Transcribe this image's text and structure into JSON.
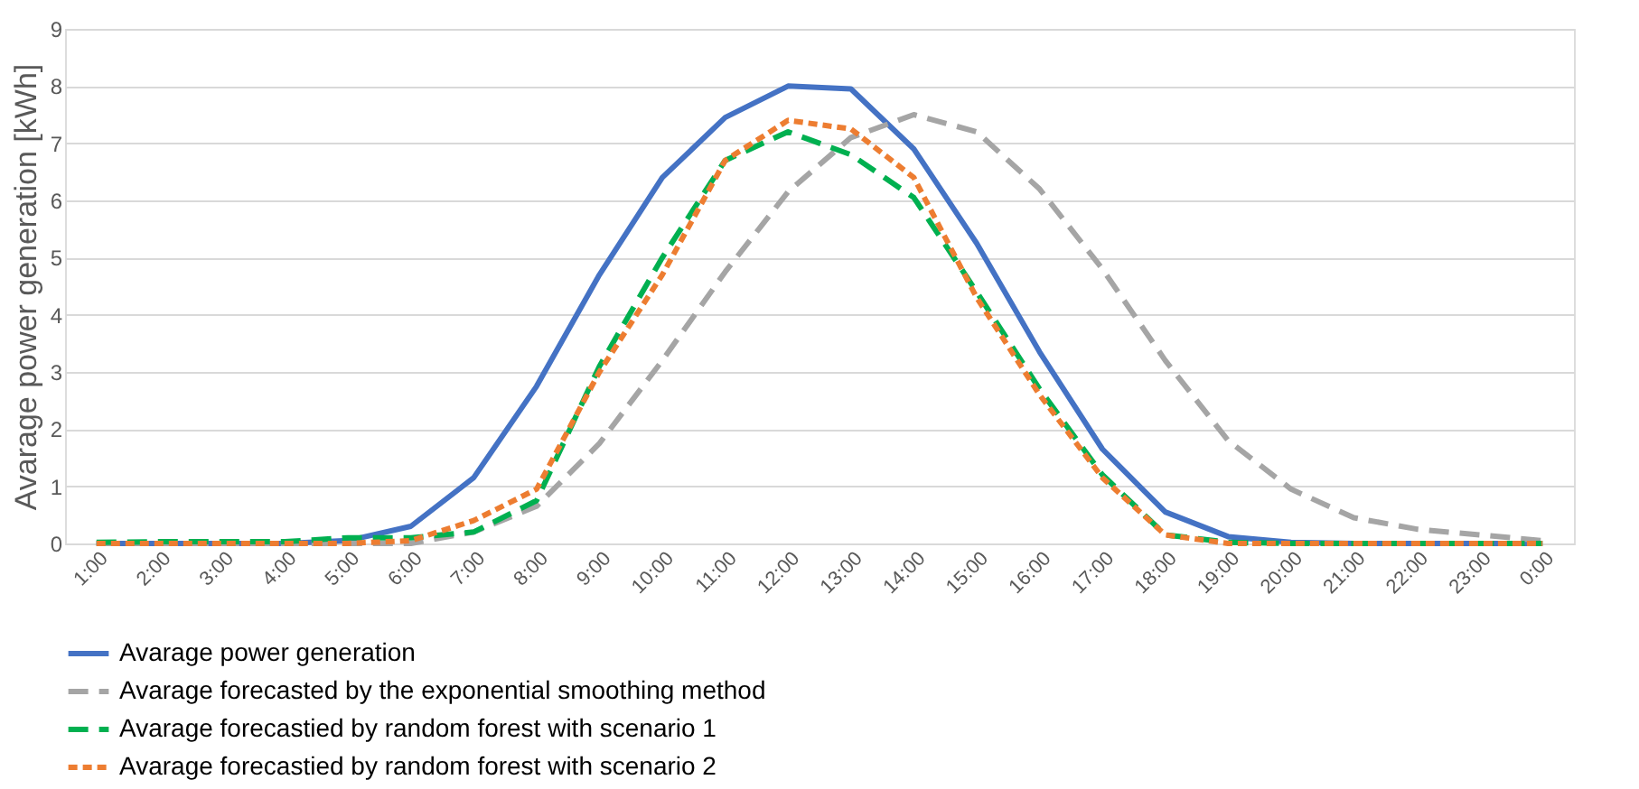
{
  "chart_data": {
    "type": "line",
    "ylabel": "Avarage power generation [kWh]",
    "categories": [
      "1:00",
      "2:00",
      "3:00",
      "4:00",
      "5:00",
      "6:00",
      "7:00",
      "8:00",
      "9:00",
      "10:00",
      "11:00",
      "12:00",
      "13:00",
      "14:00",
      "15:00",
      "16:00",
      "17:00",
      "18:00",
      "19:00",
      "20:00",
      "21:00",
      "22:00",
      "23:00",
      "0:00"
    ],
    "series": [
      {
        "name": "Avarage power generation",
        "color": "#4472c4",
        "line_style": "solid",
        "values": [
          0,
          0,
          0,
          0,
          0.05,
          0.3,
          1.15,
          2.75,
          4.7,
          6.4,
          7.45,
          8.0,
          7.95,
          6.9,
          5.25,
          3.35,
          1.65,
          0.55,
          0.12,
          0.02,
          0,
          0,
          0,
          0
        ]
      },
      {
        "name": "Avarage forecasted by the exponential smoothing method",
        "color": "#a5a5a5",
        "line_style": "dashed",
        "values": [
          0,
          0,
          0,
          0,
          0,
          0,
          0.2,
          0.65,
          1.75,
          3.2,
          4.75,
          6.15,
          7.1,
          7.5,
          7.2,
          6.2,
          4.8,
          3.2,
          1.8,
          0.95,
          0.45,
          0.25,
          0.15,
          0.05
        ]
      },
      {
        "name": "Avarage forecastied by random forest with scenario 1",
        "color": "#00b050",
        "line_style": "dashed",
        "values": [
          0.02,
          0.03,
          0.03,
          0.03,
          0.1,
          0.1,
          0.2,
          0.75,
          3.1,
          5.0,
          6.7,
          7.2,
          6.8,
          6.05,
          4.4,
          2.7,
          1.2,
          0.15,
          0.02,
          0,
          0,
          0,
          0,
          0
        ]
      },
      {
        "name": "Avarage forecastied by random forest with scenario 2",
        "color": "#ed7d31",
        "line_style": "dotted",
        "values": [
          0,
          0,
          0,
          0,
          0,
          0.05,
          0.4,
          0.95,
          3.0,
          4.7,
          6.7,
          7.4,
          7.25,
          6.4,
          4.3,
          2.6,
          1.15,
          0.15,
          0,
          0,
          0,
          0,
          0,
          0
        ]
      }
    ],
    "ylim": [
      0,
      9
    ],
    "yticks": [
      0,
      1,
      2,
      3,
      4,
      5,
      6,
      7,
      8,
      9
    ],
    "grid": "y",
    "legend": "bottom",
    "marker": "none"
  }
}
